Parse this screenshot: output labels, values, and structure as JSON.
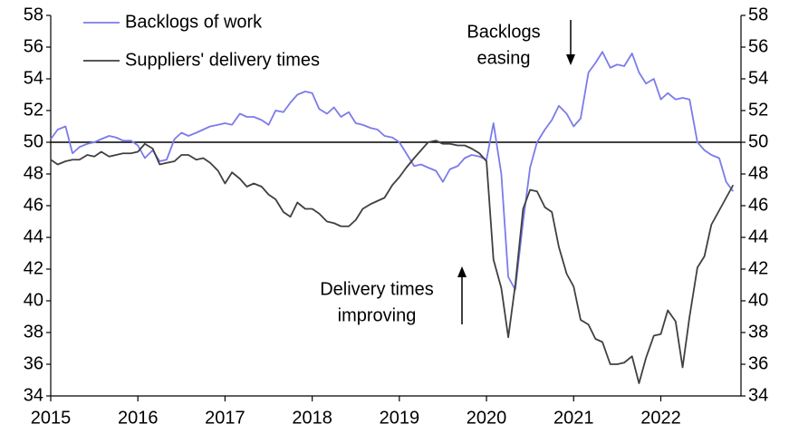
{
  "chart_data": {
    "type": "line",
    "x": [
      2015,
      2015.08,
      2015.17,
      2015.25,
      2015.33,
      2015.42,
      2015.5,
      2015.58,
      2015.67,
      2015.75,
      2015.83,
      2015.92,
      2016,
      2016.08,
      2016.17,
      2016.25,
      2016.33,
      2016.42,
      2016.5,
      2016.58,
      2016.67,
      2016.75,
      2016.83,
      2016.92,
      2017,
      2017.08,
      2017.17,
      2017.25,
      2017.33,
      2017.42,
      2017.5,
      2017.58,
      2017.67,
      2017.75,
      2017.83,
      2017.92,
      2018,
      2018.08,
      2018.17,
      2018.25,
      2018.33,
      2018.42,
      2018.5,
      2018.58,
      2018.67,
      2018.75,
      2018.83,
      2018.92,
      2019,
      2019.08,
      2019.17,
      2019.25,
      2019.33,
      2019.42,
      2019.5,
      2019.58,
      2019.67,
      2019.75,
      2019.83,
      2019.92,
      2020,
      2020.08,
      2020.17,
      2020.25,
      2020.33,
      2020.42,
      2020.5,
      2020.58,
      2020.67,
      2020.75,
      2020.83,
      2020.92,
      2021,
      2021.08,
      2021.17,
      2021.25,
      2021.33,
      2021.42,
      2021.5,
      2021.58,
      2021.67,
      2021.75,
      2021.83,
      2021.92,
      2022,
      2022.08,
      2022.17,
      2022.25,
      2022.33,
      2022.42,
      2022.5,
      2022.58,
      2022.67,
      2022.75,
      2022.83
    ],
    "series": [
      {
        "name": "Backlogs of work",
        "color": "#7b7bea",
        "values": [
          50.2,
          50.8,
          51.0,
          49.3,
          49.7,
          49.9,
          50.0,
          50.2,
          50.4,
          50.3,
          50.1,
          50.1,
          49.8,
          49.0,
          49.5,
          48.8,
          48.9,
          50.2,
          50.6,
          50.4,
          50.6,
          50.8,
          51.0,
          51.1,
          51.2,
          51.1,
          51.8,
          51.6,
          51.6,
          51.4,
          51.1,
          52.0,
          51.9,
          52.5,
          53.0,
          53.2,
          53.1,
          52.1,
          51.8,
          52.2,
          51.6,
          51.9,
          51.2,
          51.1,
          50.9,
          50.8,
          50.4,
          50.3,
          50.0,
          49.3,
          48.5,
          48.6,
          48.4,
          48.2,
          47.5,
          48.3,
          48.5,
          49.0,
          49.2,
          49.1,
          48.9,
          51.2,
          48.0,
          41.5,
          40.7,
          45.0,
          48.4,
          50.0,
          50.8,
          51.4,
          52.3,
          51.8,
          51.0,
          51.5,
          54.4,
          55.0,
          55.7,
          54.7,
          54.9,
          54.8,
          55.6,
          54.4,
          53.7,
          54.0,
          52.7,
          53.1,
          52.7,
          52.8,
          52.7,
          50.0,
          49.5,
          49.2,
          49.0,
          47.5,
          46.9
        ]
      },
      {
        "name": "Suppliers' delivery times",
        "color": "#404040",
        "values": [
          48.9,
          48.6,
          48.8,
          48.9,
          48.9,
          49.2,
          49.1,
          49.4,
          49.1,
          49.2,
          49.3,
          49.3,
          49.4,
          49.9,
          49.6,
          48.6,
          48.7,
          48.8,
          49.2,
          49.2,
          48.9,
          49.0,
          48.7,
          48.2,
          47.4,
          48.1,
          47.7,
          47.2,
          47.4,
          47.2,
          46.7,
          46.4,
          45.6,
          45.3,
          46.2,
          45.8,
          45.8,
          45.5,
          45.0,
          44.9,
          44.7,
          44.7,
          45.1,
          45.8,
          46.1,
          46.3,
          46.5,
          47.3,
          47.8,
          48.4,
          49.0,
          49.5,
          50.0,
          50.1,
          49.9,
          49.9,
          49.8,
          49.8,
          49.6,
          49.3,
          48.8,
          42.6,
          40.8,
          37.7,
          41.0,
          45.8,
          47.0,
          46.9,
          45.9,
          45.6,
          43.4,
          41.7,
          40.9,
          38.8,
          38.5,
          37.6,
          37.4,
          36.0,
          36.0,
          36.1,
          36.5,
          34.8,
          36.4,
          37.8,
          37.9,
          39.4,
          38.7,
          35.8,
          39.0,
          42.1,
          42.8,
          44.8,
          45.7,
          46.5,
          47.3
        ]
      }
    ],
    "xlim": [
      2015,
      2022.92
    ],
    "xticks": [
      2015,
      2016,
      2017,
      2018,
      2019,
      2020,
      2021,
      2022
    ],
    "ylim": [
      34,
      58
    ],
    "yticks": [
      34,
      36,
      38,
      40,
      42,
      44,
      46,
      48,
      50,
      52,
      54,
      56,
      58
    ],
    "reference_line": 50,
    "annotations": [
      [
        "Backlogs",
        "easing"
      ],
      [
        "Delivery times",
        "improving"
      ]
    ]
  }
}
